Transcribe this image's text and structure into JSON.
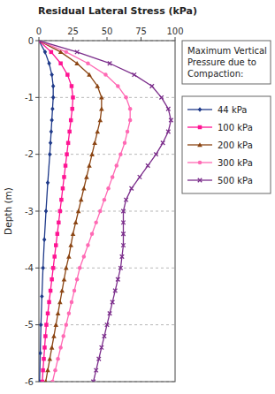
{
  "chart_data": {
    "type": "line",
    "title": "Residual Lateral Stress (kPa)",
    "ylabel": "Depth (m)",
    "legend_title": "Maximum Vertical\nPressure due to\nCompaction:",
    "xlim": [
      0,
      100
    ],
    "ylim": [
      -6,
      0
    ],
    "xticks": [
      0,
      25,
      50,
      75,
      100
    ],
    "yticks": [
      0,
      -1,
      -2,
      -3,
      -4,
      -5,
      -6
    ],
    "grid": "y",
    "legend": "right",
    "series": [
      {
        "name": "44 kPa",
        "color": "#1F3A8A",
        "marker": "diamond",
        "x": [
          0,
          4.5,
          7.5,
          9.5,
          10.5,
          10.5,
          10.0,
          9.5,
          9.0,
          8.5,
          8.0,
          6.5,
          5.2,
          4.0,
          3.0,
          2.2,
          1.5,
          1.0,
          0.5
        ],
        "values": [
          0,
          -0.2,
          -0.4,
          -0.6,
          -0.8,
          -1.0,
          -1.2,
          -1.4,
          -1.6,
          -1.8,
          -2.0,
          -2.5,
          -3.0,
          -3.5,
          -4.0,
          -4.5,
          -5.0,
          -5.5,
          -6.0
        ]
      },
      {
        "name": "100 kPa",
        "color": "#FF1493",
        "marker": "square",
        "x": [
          0,
          9,
          16,
          21,
          24,
          25,
          24.5,
          23.5,
          22.5,
          21.5,
          20.5,
          19.5,
          18.5,
          17.5,
          16.5,
          15.5,
          14.5,
          13.5,
          12.5,
          11.5,
          10.5,
          9.5,
          8.5,
          7.5,
          6.5,
          5.5,
          4.8,
          4.2,
          3.6,
          3.0,
          2.5
        ],
        "values": [
          0,
          -0.2,
          -0.4,
          -0.6,
          -0.8,
          -1.0,
          -1.2,
          -1.4,
          -1.6,
          -1.8,
          -2.0,
          -2.2,
          -2.4,
          -2.6,
          -2.8,
          -3.0,
          -3.2,
          -3.4,
          -3.6,
          -3.8,
          -4.0,
          -4.2,
          -4.4,
          -4.6,
          -4.8,
          -5.0,
          -5.2,
          -5.4,
          -5.6,
          -5.8,
          -6.0
        ]
      },
      {
        "name": "200 kPa",
        "color": "#8B4513",
        "marker": "triangle-up",
        "x": [
          0,
          16,
          28,
          37,
          43,
          46,
          46,
          45,
          43,
          41,
          39,
          37,
          35,
          33,
          31,
          29,
          27,
          25,
          23.5,
          22,
          20,
          18.5,
          17,
          15.5,
          14,
          12.5,
          11,
          9.5,
          8,
          6.5,
          5
        ],
        "values": [
          0,
          -0.2,
          -0.4,
          -0.6,
          -0.8,
          -1.0,
          -1.2,
          -1.4,
          -1.6,
          -1.8,
          -2.0,
          -2.2,
          -2.4,
          -2.6,
          -2.8,
          -3.0,
          -3.2,
          -3.4,
          -3.6,
          -3.8,
          -4.0,
          -4.2,
          -4.4,
          -4.6,
          -4.8,
          -5.0,
          -5.2,
          -5.4,
          -5.6,
          -5.8,
          -6.0
        ]
      },
      {
        "name": "300 kPa",
        "color": "#FF69B4",
        "marker": "circle",
        "x": [
          0,
          20,
          36,
          49,
          58,
          64,
          67,
          67,
          65,
          63,
          60,
          57,
          54,
          51,
          48,
          45,
          42,
          39,
          36,
          33,
          30,
          28,
          26,
          24,
          22,
          20,
          18,
          16,
          14,
          12,
          10
        ],
        "values": [
          0,
          -0.2,
          -0.4,
          -0.6,
          -0.8,
          -1.0,
          -1.2,
          -1.4,
          -1.6,
          -1.8,
          -2.0,
          -2.2,
          -2.4,
          -2.6,
          -2.8,
          -3.0,
          -3.2,
          -3.4,
          -3.6,
          -3.8,
          -4.0,
          -4.2,
          -4.4,
          -4.6,
          -4.8,
          -5.0,
          -5.2,
          -5.4,
          -5.6,
          -5.8,
          -6.0
        ]
      },
      {
        "name": "500 kPa",
        "color": "#7B2D8B",
        "marker": "x",
        "x": [
          0,
          28,
          52,
          70,
          83,
          90,
          95,
          97,
          95,
          91,
          86,
          80,
          74,
          68,
          64,
          62,
          62,
          62,
          62,
          61,
          60,
          58,
          56,
          54,
          52,
          50,
          48,
          46,
          44,
          42,
          40
        ],
        "values": [
          0,
          -0.2,
          -0.4,
          -0.6,
          -0.8,
          -1.0,
          -1.2,
          -1.4,
          -1.6,
          -1.8,
          -2.0,
          -2.2,
          -2.4,
          -2.6,
          -2.8,
          -3.0,
          -3.2,
          -3.4,
          -3.6,
          -3.8,
          -4.0,
          -4.2,
          -4.4,
          -4.6,
          -4.8,
          -5.0,
          -5.2,
          -5.4,
          -5.6,
          -5.8,
          -6.0
        ]
      }
    ]
  }
}
